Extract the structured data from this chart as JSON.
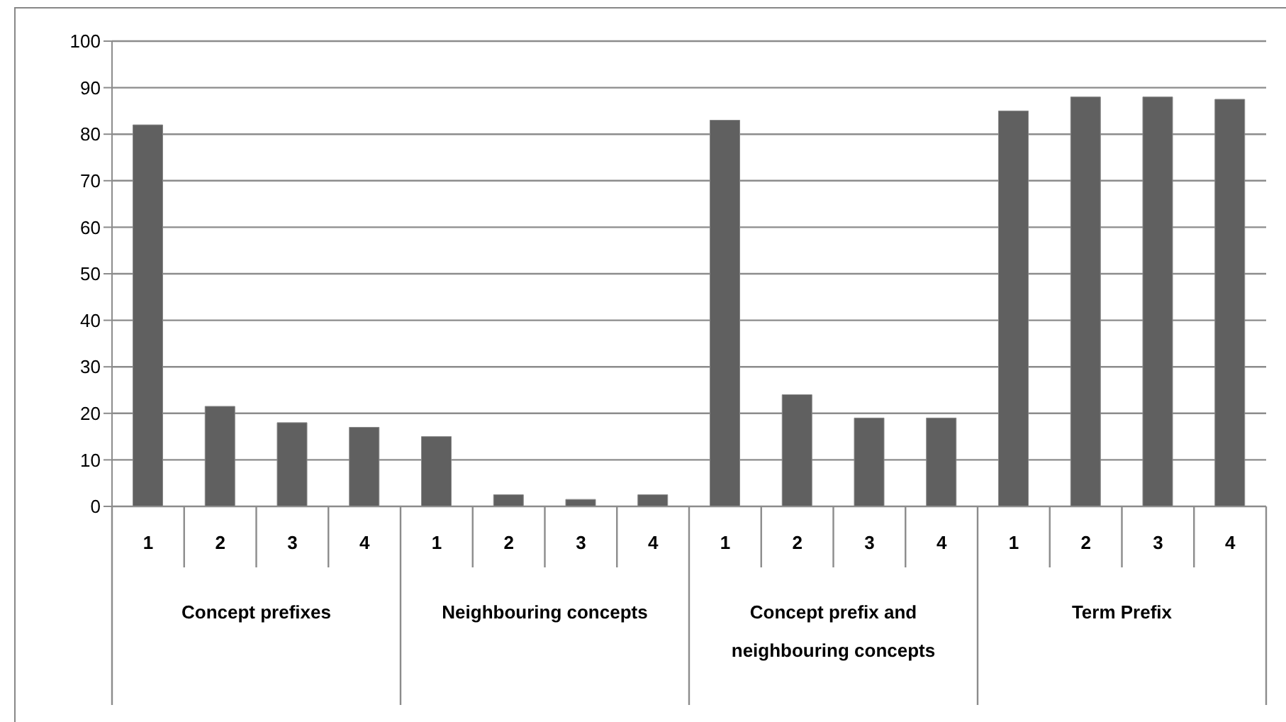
{
  "chart_data": {
    "type": "bar",
    "categories": [
      "1",
      "2",
      "3",
      "4",
      "1",
      "2",
      "3",
      "4",
      "1",
      "2",
      "3",
      "4",
      "1",
      "2",
      "3",
      "4"
    ],
    "values": [
      82,
      21.5,
      18,
      17,
      15,
      2.5,
      1.5,
      2.5,
      83,
      24,
      19,
      19,
      85,
      88,
      88,
      87.5
    ],
    "color": "#606060",
    "ylim": [
      0,
      100
    ],
    "yticks": [
      0,
      10,
      20,
      30,
      40,
      50,
      60,
      70,
      80,
      90,
      100
    ],
    "grid": "y",
    "annotations": [
      "Concept prefixes",
      "Neighbouring concepts",
      "Concept prefix and neighbouring concepts",
      "Term Prefix"
    ]
  }
}
